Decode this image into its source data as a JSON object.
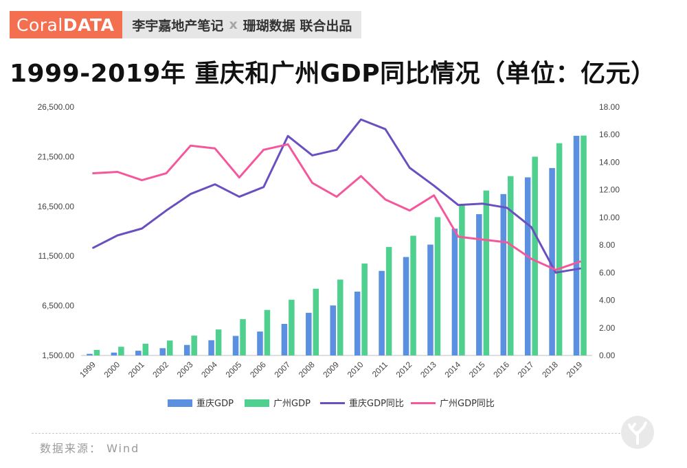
{
  "header": {
    "logo_part1": "Coral",
    "logo_part2": "DATA",
    "author": "李宇嘉地产笔记",
    "separator": "x",
    "partner": "珊瑚数据 联合出品"
  },
  "title": "1999-2019年 重庆和广州GDP同比情况（单位：亿元）",
  "source": "数据来源：  Wind",
  "colors": {
    "logo_bg": "#f36f4f",
    "cq_gdp": "#5b8fe0",
    "gz_gdp": "#4fd08f",
    "cq_yoy": "#6a4fc0",
    "gz_yoy": "#f4589a"
  },
  "chart_data": {
    "type": "bar+line",
    "title": "1999-2019年 重庆和广州GDP同比情况（单位：亿元）",
    "xlabel": "",
    "ylabel_left": "",
    "ylabel_right": "",
    "categories": [
      "1999",
      "2000",
      "2001",
      "2002",
      "2003",
      "2004",
      "2005",
      "2006",
      "2007",
      "2008",
      "2009",
      "2010",
      "2011",
      "2012",
      "2013",
      "2014",
      "2015",
      "2016",
      "2017",
      "2018",
      "2019"
    ],
    "y_left": {
      "min": 1500,
      "max": 26500,
      "ticks": [
        1500,
        6500,
        11500,
        16500,
        21500,
        26500
      ],
      "tick_labels": [
        "1,500.00",
        "6,500.00",
        "11,500.00",
        "16,500.00",
        "21,500.00",
        "26,500.00"
      ]
    },
    "y_right": {
      "min": 0,
      "max": 18,
      "ticks": [
        0,
        2,
        4,
        6,
        8,
        10,
        12,
        14,
        16,
        18
      ],
      "tick_labels": [
        "0.00",
        "2.00",
        "4.00",
        "6.00",
        "8.00",
        "10.00",
        "12.00",
        "14.00",
        "16.00",
        "18.00"
      ]
    },
    "series": [
      {
        "name": "重庆GDP",
        "kind": "bar",
        "axis": "left",
        "values": [
          1663,
          1791,
          1977,
          2233,
          2556,
          3035,
          3468,
          3907,
          4676,
          5794,
          6530,
          7926,
          10011,
          11410,
          12657,
          14263,
          15720,
          17741,
          19425,
          20363,
          23606
        ]
      },
      {
        "name": "广州GDP",
        "kind": "bar",
        "axis": "left",
        "values": [
          2056,
          2376,
          2686,
          3002,
          3497,
          4116,
          5154,
          6081,
          7109,
          8216,
          9138,
          10748,
          12423,
          13551,
          15420,
          16707,
          18100,
          19547,
          21503,
          22859,
          23629
        ]
      },
      {
        "name": "重庆GDP同比",
        "kind": "line",
        "axis": "right",
        "values": [
          7.8,
          8.7,
          9.2,
          10.5,
          11.7,
          12.4,
          11.5,
          12.2,
          15.9,
          14.5,
          14.9,
          17.1,
          16.4,
          13.6,
          12.3,
          10.9,
          11.0,
          10.7,
          9.3,
          6.0,
          6.3
        ]
      },
      {
        "name": "广州GDP同比",
        "kind": "line",
        "axis": "right",
        "values": [
          13.2,
          13.3,
          12.7,
          13.2,
          15.2,
          15.0,
          12.9,
          14.9,
          15.3,
          12.5,
          11.5,
          13.0,
          11.3,
          10.5,
          11.6,
          8.6,
          8.4,
          8.2,
          7.0,
          6.2,
          6.8
        ]
      }
    ],
    "grid": false,
    "legend_position": "bottom"
  }
}
